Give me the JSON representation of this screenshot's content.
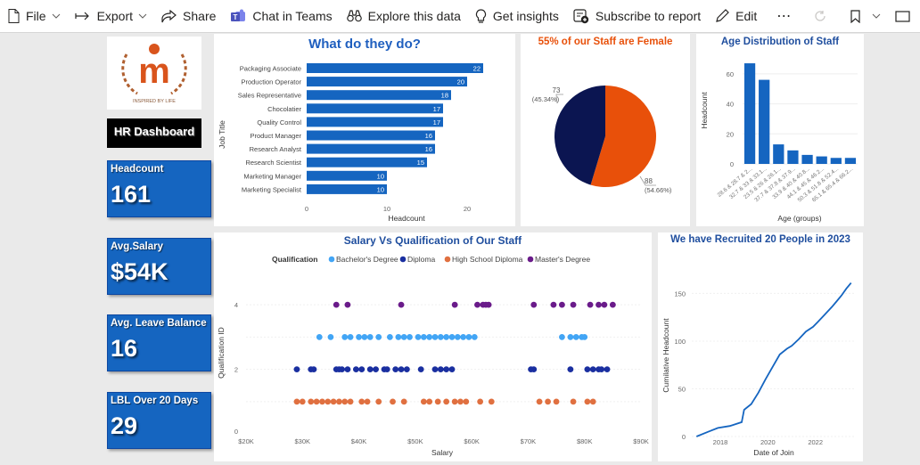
{
  "toolbar": {
    "file": "File",
    "export": "Export",
    "share": "Share",
    "chat": "Chat in Teams",
    "explore": "Explore this data",
    "insights": "Get insights",
    "subscribe": "Subscribe to report",
    "edit": "Edit",
    "more": "⋯"
  },
  "dashboard": {
    "title": "HR Dashboard",
    "logo_tagline": "INSPIRED BY LIFE",
    "logo_glyph": "m"
  },
  "kpis": [
    {
      "label": "Headcount",
      "value": "161"
    },
    {
      "label": "Avg.Salary",
      "value": "$54K"
    },
    {
      "label": "Avg. Leave Balance",
      "value": "16"
    },
    {
      "label": "LBL Over 20 Days",
      "value": "29"
    }
  ],
  "colors": {
    "bar": "#1565c0",
    "pie_female": "#e8500a",
    "pie_male": "#0b1551",
    "bachelor": "#42a5f5",
    "diploma": "#1a2fa0",
    "highschool": "#e07040",
    "masters": "#6a1b8a"
  },
  "chart_data": [
    {
      "type": "bar",
      "orientation": "horizontal",
      "title": "What do they do?",
      "xlabel": "Headcount",
      "ylabel": "Job Title",
      "categories": [
        "Packaging Associate",
        "Production Operator",
        "Sales Representative",
        "Chocolatier",
        "Quality Control",
        "Product Manager",
        "Research Analyst",
        "Research Scientist",
        "Marketing Manager",
        "Marketing Specialist"
      ],
      "values": [
        22,
        20,
        18,
        17,
        17,
        16,
        16,
        15,
        10,
        10
      ],
      "xlim": [
        0,
        24
      ],
      "xticks": [
        "0",
        "10",
        "20"
      ]
    },
    {
      "type": "pie",
      "title": "55% of our Staff are Female",
      "slices": [
        {
          "value": 88,
          "label": "88",
          "pct": "(54.66%)"
        },
        {
          "value": 73,
          "label": "73",
          "pct": "(45.34%)"
        }
      ]
    },
    {
      "type": "bar",
      "title": "Age Distribution of Staff",
      "xlabel": "Age (groups)",
      "ylabel": "Headcount",
      "categories": [
        "28.6 & 28.7 & 2...",
        "32.7 & 33 & 33.1...",
        "23.5 & 26 & 26.1...",
        "37.7 & 37.8 & 37.9...",
        "33.9 & 40 & 40.8...",
        "44.1 & 45 & 46.2...",
        "50.3 & 51.8 & 52.4...",
        "65.1 & 65.4 & 66.2..."
      ],
      "values": [
        67,
        56,
        13,
        9,
        6,
        5,
        4,
        4
      ],
      "ylim": [
        0,
        70
      ],
      "yticks": [
        "0",
        "20",
        "40",
        "60"
      ]
    },
    {
      "type": "scatter",
      "title": "Salary Vs Qualification of Our Staff",
      "legend_title": "Qualification",
      "legend": [
        "Bachelor's Degree",
        "Diploma",
        "High School Diploma",
        "Master's Degree"
      ],
      "xlabel": "Salary",
      "ylabel": "Qualification ID",
      "xlim": [
        20000,
        90000
      ],
      "ylim": [
        0.5,
        4.5
      ],
      "xticks": [
        "$20K",
        "$30K",
        "$40K",
        "$50K",
        "$60K",
        "$70K",
        "$80K",
        "$90K"
      ],
      "yticks": [
        "0",
        "2",
        "4"
      ],
      "series": [
        {
          "name": "Bachelor's Degree",
          "y": 3,
          "x": [
            33000,
            35000,
            37500,
            38500,
            40000,
            41000,
            42000,
            43500,
            45500,
            47000,
            48000,
            49000,
            50500,
            51500,
            52500,
            53500,
            54500,
            55500,
            56500,
            57500,
            58500,
            59500,
            60500,
            76000,
            77500,
            78500,
            79500,
            80000
          ]
        },
        {
          "name": "Diploma",
          "y": 2,
          "x": [
            29000,
            31500,
            32000,
            36000,
            36500,
            37000,
            38000,
            39500,
            40500,
            42000,
            43000,
            44500,
            45000,
            46500,
            47500,
            48500,
            51000,
            53500,
            54500,
            55500,
            56500,
            70500,
            71000,
            77500,
            80500,
            81500,
            82500,
            83000,
            84000
          ]
        },
        {
          "name": "High School Diploma",
          "y": 1,
          "x": [
            29000,
            30000,
            31500,
            32500,
            33500,
            34500,
            35500,
            36500,
            37500,
            38500,
            40500,
            41500,
            43500,
            46000,
            48000,
            51500,
            52500,
            54000,
            55500,
            57000,
            58000,
            59000,
            61500,
            63500,
            72000,
            73500,
            75000,
            78000,
            80500,
            81500
          ]
        },
        {
          "name": "Master's Degree",
          "y": 4,
          "x": [
            36000,
            38000,
            47500,
            57000,
            61000,
            62000,
            62500,
            63000,
            71000,
            74500,
            76000,
            78000,
            81000,
            82500,
            83500,
            85000
          ]
        }
      ]
    },
    {
      "type": "line",
      "title": "We have Recruited 20 People in 2023",
      "xlabel": "Date of Join",
      "ylabel": "Cumilative Headcount",
      "xlim": [
        2016.8,
        2023.7
      ],
      "ylim": [
        0,
        170
      ],
      "xticks": [
        "2018",
        "2020",
        "2022"
      ],
      "yticks": [
        "0",
        "50",
        "100",
        "150"
      ],
      "points": [
        [
          2017,
          0
        ],
        [
          2017.5,
          5
        ],
        [
          2017.9,
          9
        ],
        [
          2018.4,
          11
        ],
        [
          2018.9,
          15
        ],
        [
          2019.0,
          28
        ],
        [
          2019.3,
          34
        ],
        [
          2019.6,
          46
        ],
        [
          2019.9,
          60
        ],
        [
          2020.2,
          73
        ],
        [
          2020.5,
          86
        ],
        [
          2020.8,
          92
        ],
        [
          2021.0,
          95
        ],
        [
          2021.3,
          102
        ],
        [
          2021.6,
          110
        ],
        [
          2021.9,
          115
        ],
        [
          2022.1,
          120
        ],
        [
          2022.4,
          128
        ],
        [
          2022.7,
          136
        ],
        [
          2022.9,
          142
        ],
        [
          2023.1,
          148
        ],
        [
          2023.3,
          155
        ],
        [
          2023.5,
          161
        ]
      ]
    }
  ]
}
